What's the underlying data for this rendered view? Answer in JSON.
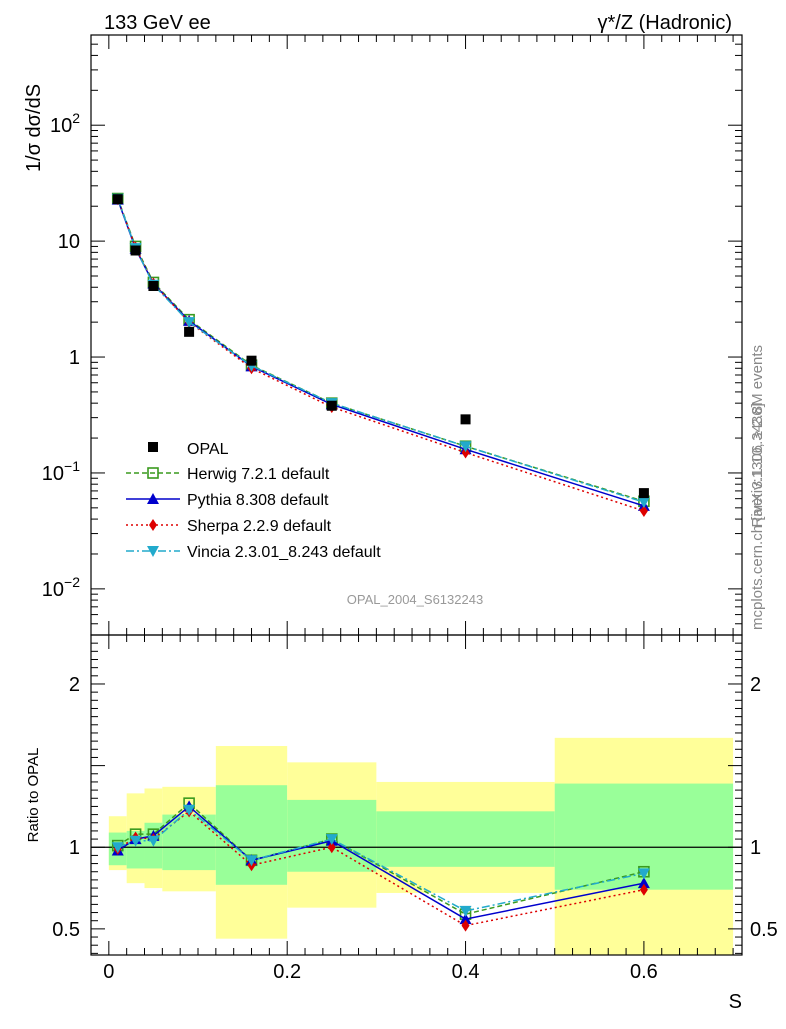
{
  "header": {
    "left": "133 GeV ee",
    "right": "γ*/Z (Hadronic)"
  },
  "side_labels": {
    "rivet": "Rivet 3.1.10, ≥ 2.8M events",
    "mcplots": "mcplots.cern.ch [arXiv:1306.3436]"
  },
  "watermark": "OPAL_2004_S6132243",
  "colors": {
    "data": "#000000",
    "herwig": "#3a9a1e",
    "pythia": "#0000cc",
    "sherpa": "#dd0000",
    "vincia": "#22aacc",
    "band_outer": "#ffff99",
    "band_inner": "#99ff99"
  },
  "chart_data": [
    {
      "type": "scatter",
      "panel": "main",
      "ylabel": "1/σ dσ/dS",
      "xlabel": "",
      "xlim": [
        -0.02,
        0.71
      ],
      "ylim": [
        0.004,
        600
      ],
      "yscale": "log",
      "yticks": [
        {
          "value": 0.01,
          "base": "10",
          "exp": "−2"
        },
        {
          "value": 0.1,
          "base": "10",
          "exp": "−1"
        },
        {
          "value": 1,
          "base": "1",
          "exp": ""
        },
        {
          "value": 10,
          "base": "10",
          "exp": ""
        },
        {
          "value": 100,
          "base": "10",
          "exp": "2"
        }
      ],
      "legend_position": "lower-left",
      "x": [
        0.01,
        0.03,
        0.05,
        0.09,
        0.16,
        0.25,
        0.4,
        0.6
      ],
      "data": {
        "name": "OPAL",
        "values": [
          23.0,
          8.3,
          4.1,
          1.65,
          0.93,
          0.38,
          0.29,
          0.067
        ]
      },
      "series": [
        {
          "name": "Herwig 7.2.1 default",
          "key": "herwig",
          "values": [
            23.3,
            9.0,
            4.4,
            2.1,
            0.85,
            0.4,
            0.17,
            0.057
          ]
        },
        {
          "name": "Pythia 8.308 default",
          "key": "pythia",
          "values": [
            22.8,
            8.6,
            4.3,
            2.05,
            0.83,
            0.39,
            0.16,
            0.052
          ]
        },
        {
          "name": "Sherpa 2.2.9 default",
          "key": "sherpa",
          "values": [
            23.0,
            8.8,
            4.3,
            2.0,
            0.8,
            0.37,
            0.15,
            0.047
          ]
        },
        {
          "name": "Vincia 2.3.01_8.243 default",
          "key": "vincia",
          "values": [
            23.2,
            8.7,
            4.2,
            2.0,
            0.84,
            0.4,
            0.17,
            0.056
          ]
        }
      ]
    },
    {
      "type": "line",
      "panel": "ratio",
      "ylabel": "Ratio to OPAL",
      "xlabel": "S",
      "xlim": [
        -0.02,
        0.71
      ],
      "ylim": [
        0.34,
        2.3
      ],
      "yscale": "linear",
      "xticks": [
        {
          "value": 0,
          "label": "0"
        },
        {
          "value": 0.2,
          "label": "0.2"
        },
        {
          "value": 0.4,
          "label": "0.4"
        },
        {
          "value": 0.6,
          "label": "0.6"
        }
      ],
      "yticks": [
        {
          "value": 0.5,
          "label": "0.5"
        },
        {
          "value": 1,
          "label": "1"
        },
        {
          "value": 2,
          "label": "2"
        }
      ],
      "bins": [
        {
          "lo": 0.0,
          "hi": 0.02,
          "inner": [
            0.89,
            1.09
          ],
          "outer": [
            0.86,
            1.19
          ]
        },
        {
          "lo": 0.02,
          "hi": 0.04,
          "inner": [
            0.87,
            1.1
          ],
          "outer": [
            0.78,
            1.33
          ]
        },
        {
          "lo": 0.04,
          "hi": 0.06,
          "inner": [
            0.87,
            1.15
          ],
          "outer": [
            0.75,
            1.36
          ]
        },
        {
          "lo": 0.06,
          "hi": 0.12,
          "inner": [
            0.86,
            1.2
          ],
          "outer": [
            0.73,
            1.37
          ]
        },
        {
          "lo": 0.12,
          "hi": 0.2,
          "inner": [
            0.77,
            1.38
          ],
          "outer": [
            0.44,
            1.62
          ]
        },
        {
          "lo": 0.2,
          "hi": 0.3,
          "inner": [
            0.85,
            1.29
          ],
          "outer": [
            0.63,
            1.52
          ]
        },
        {
          "lo": 0.3,
          "hi": 0.5,
          "inner": [
            0.88,
            1.22
          ],
          "outer": [
            0.72,
            1.4
          ]
        },
        {
          "lo": 0.5,
          "hi": 0.7,
          "inner": [
            0.74,
            1.39
          ],
          "outer": [
            0.3,
            1.67
          ]
        }
      ],
      "x": [
        0.01,
        0.03,
        0.05,
        0.09,
        0.16,
        0.25,
        0.4,
        0.6
      ],
      "series": [
        {
          "name": "Herwig 7.2.1 default",
          "key": "herwig",
          "values": [
            1.01,
            1.08,
            1.08,
            1.27,
            0.92,
            1.05,
            0.59,
            0.85
          ]
        },
        {
          "name": "Pythia 8.308 default",
          "key": "pythia",
          "values": [
            0.98,
            1.05,
            1.07,
            1.25,
            0.92,
            1.04,
            0.56,
            0.78
          ]
        },
        {
          "name": "Sherpa 2.2.9 default",
          "key": "sherpa",
          "values": [
            0.99,
            1.06,
            1.05,
            1.22,
            0.89,
            1.0,
            0.52,
            0.74
          ]
        },
        {
          "name": "Vincia 2.3.01_8.243 default",
          "key": "vincia",
          "values": [
            1.0,
            1.04,
            1.04,
            1.23,
            0.92,
            1.05,
            0.61,
            0.84
          ]
        }
      ]
    }
  ]
}
